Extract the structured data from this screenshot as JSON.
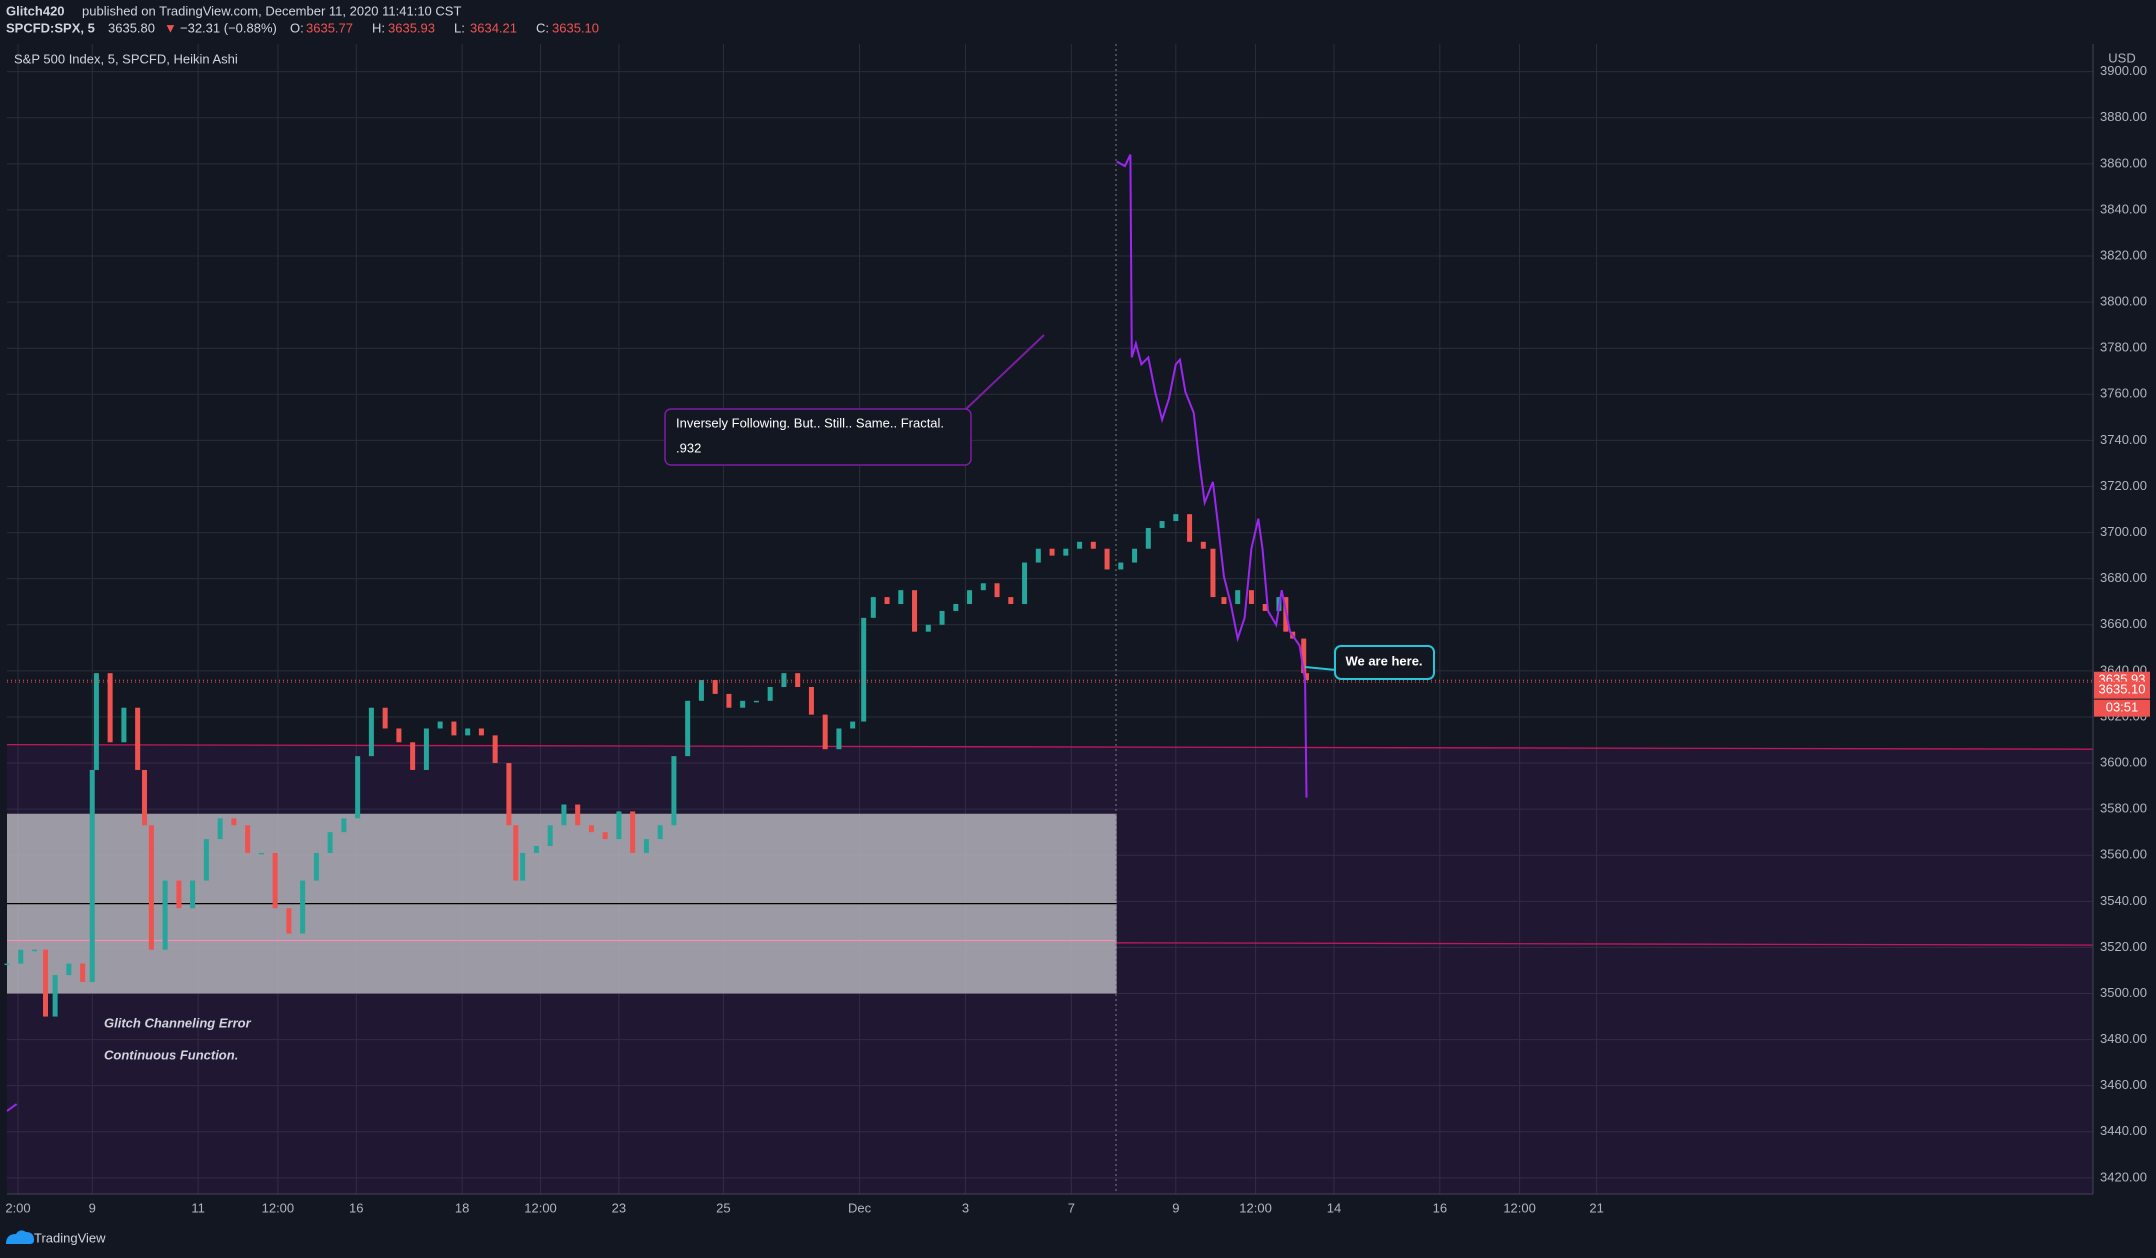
{
  "header": {
    "author": "Glitch420",
    "published": "published on TradingView.com, December 11, 2020 11:41:10 CST",
    "symbol": "SPCFD:SPX, 5",
    "last": "3635.80",
    "arrow": "▼",
    "change": "−32.31 (−0.88%)",
    "ohlc": [
      {
        "label": "O:",
        "value": "3635.77"
      },
      {
        "label": "H:",
        "value": "3635.93"
      },
      {
        "label": "L:",
        "value": "3634.21"
      },
      {
        "label": "C:",
        "value": "3635.10"
      }
    ]
  },
  "chart_data": {
    "type": "candles",
    "legend": "S&P 500 Index, 5, SPCFD, Heikin Ashi",
    "currency": "USD",
    "xlim": [
      0,
      1517
    ],
    "xticks": [
      {
        "value": 8,
        "label": "2:00"
      },
      {
        "value": 62,
        "label": "9"
      },
      {
        "value": 139,
        "label": "11"
      },
      {
        "value": 197,
        "label": "12:00"
      },
      {
        "value": 254,
        "label": "16"
      },
      {
        "value": 331,
        "label": "18"
      },
      {
        "value": 388,
        "label": "12:00"
      },
      {
        "value": 445,
        "label": "23"
      },
      {
        "value": 521,
        "label": "25"
      },
      {
        "value": 620,
        "label": "Dec"
      },
      {
        "value": 697,
        "label": "3"
      },
      {
        "value": 774,
        "label": "7"
      },
      {
        "value": 850,
        "label": "9"
      },
      {
        "value": 908,
        "label": "12:00"
      },
      {
        "value": 965,
        "label": "14"
      },
      {
        "value": 1042,
        "label": "16"
      },
      {
        "value": 1100,
        "label": "12:00"
      },
      {
        "value": 1156,
        "label": "21"
      }
    ],
    "ylim": [
      3413,
      3912
    ],
    "yticks": [
      {
        "value": 3420,
        "label": "3420.00"
      },
      {
        "value": 3440,
        "label": "3440.00"
      },
      {
        "value": 3460,
        "label": "3460.00"
      },
      {
        "value": 3480,
        "label": "3480.00"
      },
      {
        "value": 3500,
        "label": "3500.00"
      },
      {
        "value": 3520,
        "label": "3520.00"
      },
      {
        "value": 3540,
        "label": "3540.00"
      },
      {
        "value": 3560,
        "label": "3560.00"
      },
      {
        "value": 3580,
        "label": "3580.00"
      },
      {
        "value": 3600,
        "label": "3600.00"
      },
      {
        "value": 3620,
        "label": "3620.00"
      },
      {
        "value": 3640,
        "label": "3640.00"
      },
      {
        "value": 3660,
        "label": "3660.00"
      },
      {
        "value": 3680,
        "label": "3680.00"
      },
      {
        "value": 3700,
        "label": "3700.00"
      },
      {
        "value": 3720,
        "label": "3720.00"
      },
      {
        "value": 3740,
        "label": "3740.00"
      },
      {
        "value": 3760,
        "label": "3760.00"
      },
      {
        "value": 3780,
        "label": "3780.00"
      },
      {
        "value": 3800,
        "label": "3800.00"
      },
      {
        "value": 3820,
        "label": "3820.00"
      },
      {
        "value": 3840,
        "label": "3840.00"
      },
      {
        "value": 3860,
        "label": "3860.00"
      },
      {
        "value": 3880,
        "label": "3880.00"
      },
      {
        "value": 3900,
        "label": "3900.00"
      }
    ],
    "grid": true,
    "series": [
      {
        "up_color": "#26a69a",
        "down_color": "#ef5350",
        "x": [
          0,
          10,
          20,
          28,
          35,
          45,
          55,
          62,
          65,
          75,
          85,
          95,
          100,
          105,
          115,
          125,
          135,
          145,
          155,
          165,
          175,
          185,
          195,
          205,
          215,
          225,
          235,
          245,
          255,
          265,
          275,
          285,
          295,
          305,
          315,
          325,
          335,
          345,
          355,
          365,
          370,
          375,
          385,
          395,
          405,
          415,
          425,
          435,
          445,
          455,
          465,
          475,
          485,
          495,
          505,
          515,
          525,
          535,
          545,
          555,
          565,
          575,
          585,
          595,
          605,
          615,
          623,
          630,
          640,
          650,
          660,
          670,
          680,
          690,
          700,
          710,
          720,
          730,
          740,
          750,
          760,
          770,
          780,
          790,
          800,
          810,
          820,
          830,
          840,
          850,
          860,
          870,
          877,
          885,
          895,
          905,
          915,
          925,
          930,
          935,
          943,
          945
        ],
        "values": [
          3513,
          3519,
          3519,
          3490,
          3508,
          3513,
          3505,
          3597,
          3639,
          3609,
          3624,
          3597,
          3573,
          3519,
          3549,
          3537,
          3549,
          3567,
          3576,
          3573,
          3561,
          3561,
          3537,
          3526,
          3549,
          3561,
          3570,
          3576,
          3603,
          3624,
          3615,
          3609,
          3597,
          3615,
          3618,
          3612,
          3615,
          3612,
          3600,
          3573,
          3549,
          3561,
          3564,
          3573,
          3582,
          3573,
          3570,
          3567,
          3579,
          3561,
          3567,
          3573,
          3603,
          3627,
          3636,
          3630,
          3624,
          3627,
          3627,
          3633,
          3639,
          3633,
          3621,
          3606,
          3615,
          3618,
          3663,
          3672,
          3669,
          3675,
          3657,
          3660,
          3666,
          3669,
          3675,
          3678,
          3672,
          3669,
          3687,
          3693,
          3690,
          3693,
          3696,
          3693,
          3684,
          3687,
          3693,
          3702,
          3705,
          3708,
          3696,
          3693,
          3672,
          3669,
          3675,
          3669,
          3666,
          3672,
          3657,
          3654,
          3639,
          3636
        ]
      },
      {
        "color": "#9c27f0",
        "x": [
          0,
          7,
          400,
          807,
          813,
          817,
          818,
          821,
          825,
          830,
          835,
          840,
          845,
          850,
          853,
          857,
          863,
          867,
          871,
          877,
          881,
          885,
          890,
          895,
          900,
          905,
          910,
          913,
          917,
          923,
          927,
          933,
          940,
          944,
          945
        ],
        "values": [
          3449,
          3452,
          null,
          3861,
          3859,
          3864,
          3776,
          3782,
          3773,
          3776,
          3761,
          3749,
          3758,
          3773,
          3775,
          3761,
          3752,
          3731,
          3713,
          3722,
          3702,
          3681,
          3669,
          3654,
          3663,
          3693,
          3706,
          3693,
          3666,
          3660,
          3675,
          3657,
          3651,
          3636,
          3585
        ]
      }
    ],
    "box": {
      "x": [
        0,
        807
      ],
      "y": [
        3500,
        3578
      ],
      "color": "#b3b1b8"
    },
    "lines": [
      {
        "x": [
          0,
          1517
        ],
        "y": [
          3608,
          3606
        ],
        "color": "#c2185b"
      },
      {
        "x": [
          807,
          1517
        ],
        "y": [
          3522,
          3521
        ],
        "color": "#c2185b"
      },
      {
        "x": [
          0,
          807
        ],
        "y": [
          3539,
          3539
        ],
        "color": "#000000"
      },
      {
        "x": [
          0,
          807
        ],
        "y": [
          3523,
          3523
        ],
        "color": "#f48fb1"
      }
    ],
    "price_tags": [
      {
        "value": 3635.93,
        "label": "3635.93"
      },
      {
        "value": 3635.1,
        "label": "3635.10"
      }
    ],
    "countdown": "03:51",
    "annotations": {
      "fractal": "Inversely Following. But.. Still.. Same.. Fractal.",
      "fractal_note": ".932",
      "here": "We are here.",
      "error": "Glitch Channeling Error",
      "function": "Continuous Function."
    }
  },
  "footer": "TradingView"
}
